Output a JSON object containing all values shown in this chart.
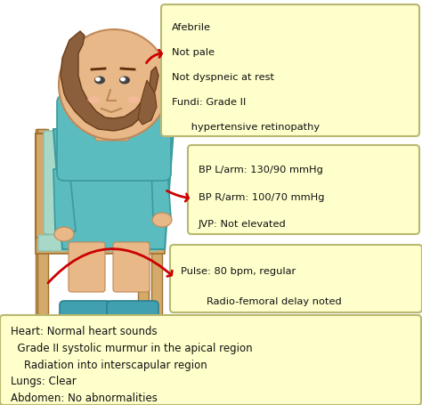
{
  "bg_color": "#ffffff",
  "box_color": "#ffffcc",
  "box_edge_color": "#b8b870",
  "arrow_color": "#cc0000",
  "text_color": "#111111",
  "skin_color": "#e8b888",
  "hair_color": "#8b5e3c",
  "dress_color": "#5bbcbf",
  "chair_color": "#d4aa6a",
  "cushion_color": "#a8d8c8",
  "slipper_color": "#40a0b0",
  "shadow_color": "#cccccc",
  "box1_lines": [
    "Afebrile",
    "Not pale",
    "Not dyspneic at rest",
    "Fundi: Grade II",
    "      hypertensive retinopathy"
  ],
  "box2_lines": [
    "BP L/arm: 130/90 mmHg",
    "BP R/arm: 100/70 mmHg",
    "JVP: Not elevated"
  ],
  "box3_lines": [
    "Pulse: 80 bpm, regular",
    "        Radio-femoral delay noted"
  ],
  "box4_lines": [
    "Heart: Normal heart sounds",
    "  Grade II systolic murmur in the apical region",
    "    Radiation into interscapular region",
    "Lungs: Clear",
    "Abdomen: No abnormalities"
  ],
  "figure_size": [
    4.74,
    4.56
  ],
  "dpi": 100
}
